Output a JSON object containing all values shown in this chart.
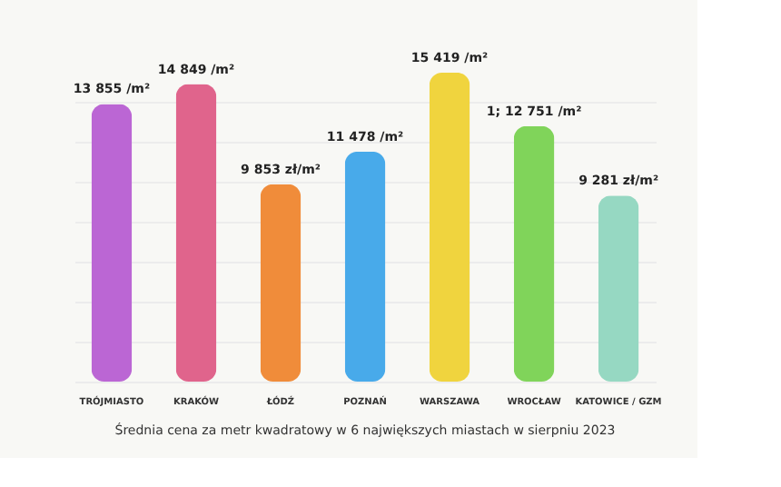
{
  "chart_data": {
    "type": "bar",
    "categories": [
      "TRÓJMIASTO",
      "KRAKÓW",
      "ŁÓDŹ",
      "POZNAŃ",
      "WARSZAWA",
      "WROCŁAW",
      "KATOWICE / GZM"
    ],
    "values": [
      13855,
      14849,
      9853,
      11478,
      15419,
      12751,
      9281
    ],
    "value_labels": [
      "13 855 /m²",
      "14 849 /m²",
      "9 853 zł/m²",
      "11 478 /m²",
      "15 419 /m²",
      "1; 12 751 /m²",
      "9 281 zł/m²"
    ],
    "colors": [
      "#bb66d4",
      "#e0648c",
      "#f08c3a",
      "#48aaea",
      "#f0d43e",
      "#80d45a",
      "#96d8c2"
    ],
    "grid": "y",
    "tick_labels": "x",
    "annotations": [
      "Średnia cena za metr kwadratowy w 6 największych miastach w sierpniu 2023"
    ]
  }
}
